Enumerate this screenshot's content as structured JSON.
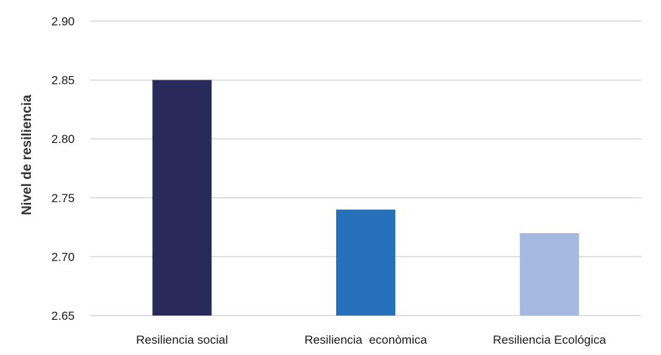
{
  "chart_data": {
    "type": "bar",
    "title": "",
    "xlabel": "",
    "ylabel": "Nivel de resiliencia",
    "categories": [
      "Resiliencia social",
      "Resiliencia  econòmica",
      "Resiliencia Ecológica"
    ],
    "values": [
      2.85,
      2.74,
      2.72
    ],
    "ylim": [
      2.65,
      2.9
    ],
    "yticks": [
      "2.90",
      "2.85",
      "2.80",
      "2.75",
      "2.70",
      "2.65"
    ],
    "ytick_values": [
      2.9,
      2.85,
      2.8,
      2.75,
      2.7,
      2.65
    ],
    "colors": [
      "#292a5c",
      "#2670b9",
      "#a3b9df"
    ],
    "grid": true,
    "legend": "none"
  }
}
